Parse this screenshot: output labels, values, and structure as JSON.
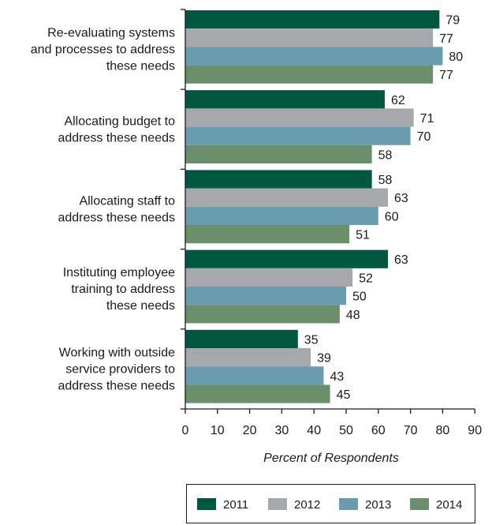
{
  "chart_data": {
    "type": "bar",
    "orientation": "horizontal",
    "categories": [
      [
        "Re-evaluating systems",
        "and processes to address",
        "these needs"
      ],
      [
        "Allocating budget to",
        "address these needs"
      ],
      [
        "Allocating staff to",
        "address these needs"
      ],
      [
        "Instituting employee",
        "training to address",
        "these needs"
      ],
      [
        "Working with outside",
        "service providers to",
        "address these needs"
      ]
    ],
    "series": [
      {
        "name": "2011",
        "color": "#00573f",
        "values": [
          79,
          62,
          58,
          63,
          35
        ]
      },
      {
        "name": "2012",
        "color": "#a7a8ab",
        "values": [
          77,
          71,
          63,
          52,
          39
        ]
      },
      {
        "name": "2013",
        "color": "#6a9caf",
        "values": [
          80,
          70,
          60,
          50,
          43
        ]
      },
      {
        "name": "2014",
        "color": "#6b8f6b",
        "values": [
          77,
          58,
          51,
          48,
          45
        ]
      }
    ],
    "xlabel": "Percent of Respondents",
    "xlim": [
      0,
      90
    ],
    "xticks": [
      0,
      10,
      20,
      30,
      40,
      50,
      60,
      70,
      80,
      90
    ],
    "legend_position": "bottom",
    "grid": false
  }
}
